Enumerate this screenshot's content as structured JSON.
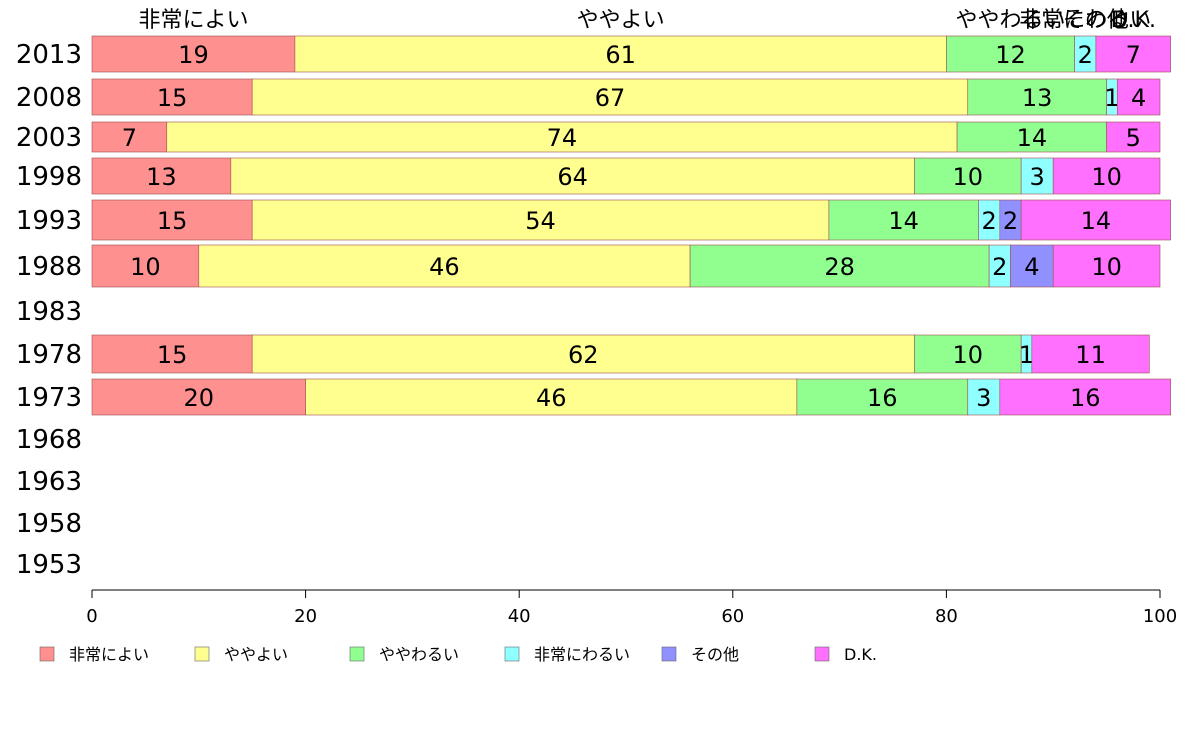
{
  "chart_data": {
    "type": "bar",
    "orientation": "horizontal",
    "stacked": true,
    "categories": [
      "2013",
      "2008",
      "2003",
      "1998",
      "1993",
      "1988",
      "1983",
      "1978",
      "1973",
      "1968",
      "1963",
      "1958",
      "1953"
    ],
    "series": [
      {
        "name": "非常によい",
        "color": "#ff9090",
        "values": [
          19,
          15,
          7,
          13,
          15,
          10,
          null,
          15,
          20,
          null,
          null,
          null,
          null
        ]
      },
      {
        "name": "ややよい",
        "color": "#ffff90",
        "values": [
          61,
          67,
          74,
          64,
          54,
          46,
          null,
          62,
          46,
          null,
          null,
          null,
          null
        ]
      },
      {
        "name": "ややわるい",
        "color": "#90ff90",
        "values": [
          12,
          13,
          14,
          10,
          14,
          28,
          null,
          10,
          16,
          null,
          null,
          null,
          null
        ]
      },
      {
        "name": "非常にわるい",
        "color": "#90ffff",
        "values": [
          2,
          1,
          0,
          3,
          2,
          2,
          null,
          1,
          3,
          null,
          null,
          null,
          null
        ]
      },
      {
        "name": "その他",
        "color": "#9090ff",
        "values": [
          0,
          0,
          0,
          0,
          2,
          4,
          null,
          0,
          0,
          null,
          null,
          null,
          null
        ]
      },
      {
        "name": "D.K.",
        "color": "#ff70ff",
        "values": [
          7,
          4,
          5,
          10,
          14,
          10,
          null,
          11,
          16,
          null,
          null,
          null,
          null
        ]
      }
    ],
    "top_labels": [
      "非常によい",
      "ややよい",
      "ややわるい",
      "非常にわるい",
      "その他",
      "D.K."
    ],
    "xlim": [
      0,
      100
    ],
    "xticks": [
      "0",
      "20",
      "40",
      "60",
      "80",
      "100"
    ],
    "legend_position": "bottom",
    "grid": false
  }
}
